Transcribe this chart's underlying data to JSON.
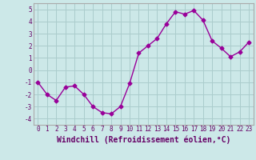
{
  "x": [
    0,
    1,
    2,
    3,
    4,
    5,
    6,
    7,
    8,
    9,
    10,
    11,
    12,
    13,
    14,
    15,
    16,
    17,
    18,
    19,
    20,
    21,
    22,
    23
  ],
  "y": [
    -1,
    -2,
    -2.5,
    -1.4,
    -1.3,
    -2,
    -3,
    -3.5,
    -3.6,
    -3,
    -1.1,
    1.4,
    2,
    2.6,
    3.8,
    4.8,
    4.6,
    4.9,
    4.1,
    2.4,
    1.8,
    1.1,
    1.5,
    2.3
  ],
  "line_color": "#990099",
  "marker": "D",
  "markersize": 2.5,
  "linewidth": 1.0,
  "bg_color": "#cce8e8",
  "grid_color": "#aacccc",
  "xlabel": "Windchill (Refroidissement éolien,°C)",
  "ylim": [
    -4.5,
    5.5
  ],
  "yticks": [
    -4,
    -3,
    -2,
    -1,
    0,
    1,
    2,
    3,
    4,
    5
  ],
  "xticks": [
    0,
    1,
    2,
    3,
    4,
    5,
    6,
    7,
    8,
    9,
    10,
    11,
    12,
    13,
    14,
    15,
    16,
    17,
    18,
    19,
    20,
    21,
    22,
    23
  ],
  "tick_fontsize": 5.5,
  "xlabel_fontsize": 7.0
}
